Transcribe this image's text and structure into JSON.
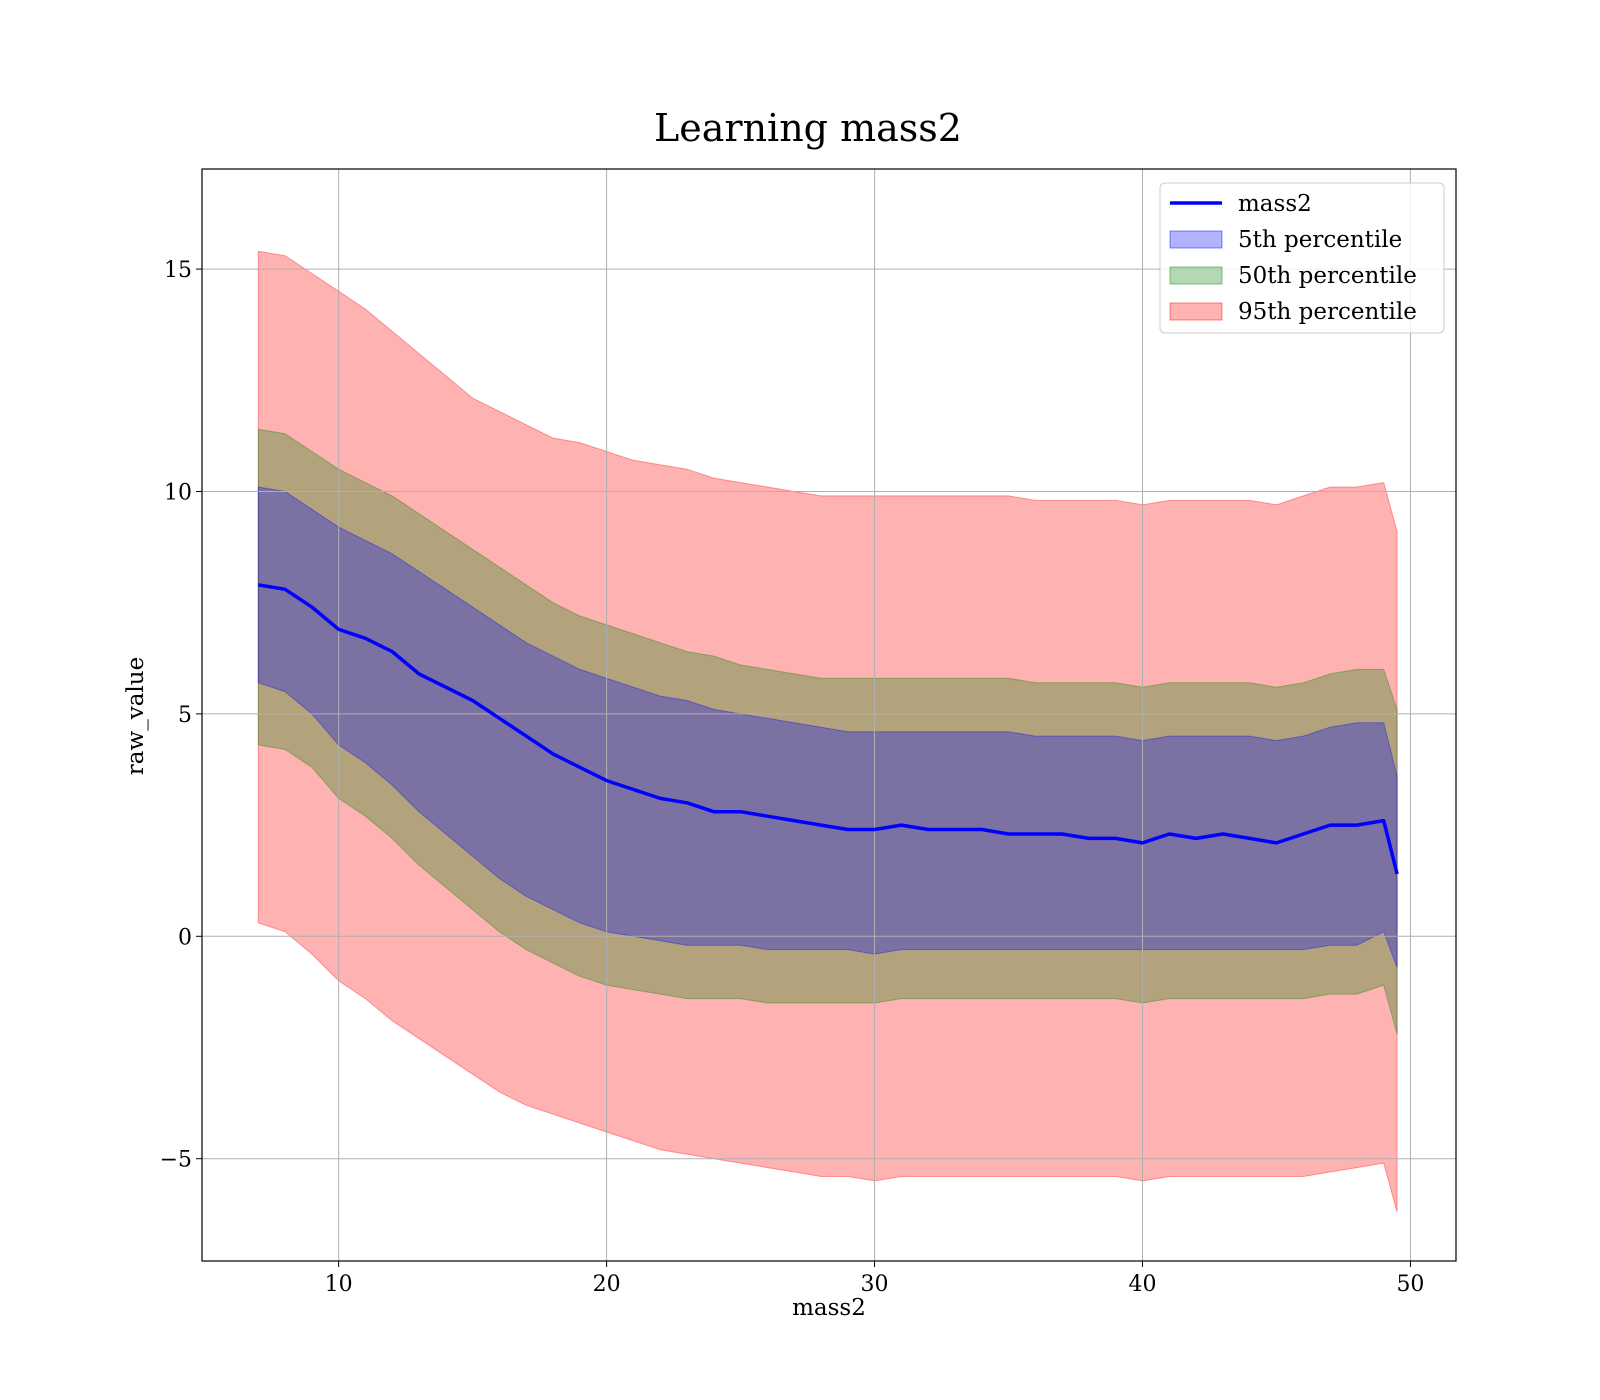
{
  "chart_data": {
    "type": "area",
    "title": "Learning mass2",
    "xlabel": "mass2",
    "ylabel": "raw_value",
    "xlim": [
      4.9,
      51.7
    ],
    "ylim": [
      -7.3,
      17.25
    ],
    "x_ticks": [
      10,
      20,
      30,
      40,
      50
    ],
    "x_tick_labels": [
      "10",
      "20",
      "30",
      "40",
      "50"
    ],
    "y_ticks": [
      -5,
      0,
      5,
      10,
      15
    ],
    "y_tick_labels": [
      "−5",
      "0",
      "5",
      "10",
      "15"
    ],
    "grid": true,
    "legend_position": "upper right",
    "x": [
      7.0,
      8.0,
      9.0,
      10.0,
      11.0,
      12.0,
      13.0,
      14.0,
      15.0,
      16.0,
      17.0,
      18.0,
      19.0,
      20.0,
      21.0,
      22.0,
      23.0,
      24.0,
      25.0,
      26.0,
      27.0,
      28.0,
      29.0,
      30.0,
      31.0,
      32.0,
      33.0,
      34.0,
      35.0,
      36.0,
      37.0,
      38.0,
      39.0,
      40.0,
      41.0,
      42.0,
      43.0,
      44.0,
      45.0,
      46.0,
      47.0,
      48.0,
      49.0,
      49.5
    ],
    "series": [
      {
        "name": "mass2",
        "kind": "line",
        "color": "#0000ff",
        "values": [
          7.9,
          7.8,
          7.4,
          6.9,
          6.7,
          6.4,
          5.9,
          5.6,
          5.3,
          4.9,
          4.5,
          4.1,
          3.8,
          3.5,
          3.3,
          3.1,
          3.0,
          2.8,
          2.8,
          2.7,
          2.6,
          2.5,
          2.4,
          2.4,
          2.5,
          2.4,
          2.4,
          2.4,
          2.3,
          2.3,
          2.3,
          2.2,
          2.2,
          2.1,
          2.3,
          2.2,
          2.3,
          2.2,
          2.1,
          2.3,
          2.5,
          2.5,
          2.6,
          1.4
        ]
      },
      {
        "name": "5th percentile",
        "kind": "band",
        "color": "#0000ff",
        "opacity": 0.3,
        "lower": [
          5.7,
          5.5,
          5.0,
          4.3,
          3.9,
          3.4,
          2.8,
          2.3,
          1.8,
          1.3,
          0.9,
          0.6,
          0.3,
          0.1,
          0.0,
          -0.1,
          -0.2,
          -0.2,
          -0.2,
          -0.3,
          -0.3,
          -0.3,
          -0.3,
          -0.4,
          -0.3,
          -0.3,
          -0.3,
          -0.3,
          -0.3,
          -0.3,
          -0.3,
          -0.3,
          -0.3,
          -0.3,
          -0.3,
          -0.3,
          -0.3,
          -0.3,
          -0.3,
          -0.3,
          -0.2,
          -0.2,
          0.1,
          -0.7
        ],
        "upper": [
          10.1,
          10.0,
          9.6,
          9.2,
          8.9,
          8.6,
          8.2,
          7.8,
          7.4,
          7.0,
          6.6,
          6.3,
          6.0,
          5.8,
          5.6,
          5.4,
          5.3,
          5.1,
          5.0,
          4.9,
          4.8,
          4.7,
          4.6,
          4.6,
          4.6,
          4.6,
          4.6,
          4.6,
          4.6,
          4.5,
          4.5,
          4.5,
          4.5,
          4.4,
          4.5,
          4.5,
          4.5,
          4.5,
          4.4,
          4.5,
          4.7,
          4.8,
          4.8,
          3.6
        ]
      },
      {
        "name": "50th percentile",
        "kind": "band",
        "color": "#008000",
        "opacity": 0.3,
        "lower": [
          4.3,
          4.2,
          3.8,
          3.1,
          2.7,
          2.2,
          1.6,
          1.1,
          0.6,
          0.1,
          -0.3,
          -0.6,
          -0.9,
          -1.1,
          -1.2,
          -1.3,
          -1.4,
          -1.4,
          -1.4,
          -1.5,
          -1.5,
          -1.5,
          -1.5,
          -1.5,
          -1.4,
          -1.4,
          -1.4,
          -1.4,
          -1.4,
          -1.4,
          -1.4,
          -1.4,
          -1.4,
          -1.5,
          -1.4,
          -1.4,
          -1.4,
          -1.4,
          -1.4,
          -1.4,
          -1.3,
          -1.3,
          -1.1,
          -2.2
        ],
        "upper": [
          11.4,
          11.3,
          10.9,
          10.5,
          10.2,
          9.9,
          9.5,
          9.1,
          8.7,
          8.3,
          7.9,
          7.5,
          7.2,
          7.0,
          6.8,
          6.6,
          6.4,
          6.3,
          6.1,
          6.0,
          5.9,
          5.8,
          5.8,
          5.8,
          5.8,
          5.8,
          5.8,
          5.8,
          5.8,
          5.7,
          5.7,
          5.7,
          5.7,
          5.6,
          5.7,
          5.7,
          5.7,
          5.7,
          5.6,
          5.7,
          5.9,
          6.0,
          6.0,
          5.1
        ]
      },
      {
        "name": "95th percentile",
        "kind": "band",
        "color": "#ff0000",
        "opacity": 0.3,
        "lower": [
          0.3,
          0.1,
          -0.4,
          -1.0,
          -1.4,
          -1.9,
          -2.3,
          -2.7,
          -3.1,
          -3.5,
          -3.8,
          -4.0,
          -4.2,
          -4.4,
          -4.6,
          -4.8,
          -4.9,
          -5.0,
          -5.1,
          -5.2,
          -5.3,
          -5.4,
          -5.4,
          -5.5,
          -5.4,
          -5.4,
          -5.4,
          -5.4,
          -5.4,
          -5.4,
          -5.4,
          -5.4,
          -5.4,
          -5.5,
          -5.4,
          -5.4,
          -5.4,
          -5.4,
          -5.4,
          -5.4,
          -5.3,
          -5.2,
          -5.1,
          -6.2
        ],
        "upper": [
          15.4,
          15.3,
          14.9,
          14.5,
          14.1,
          13.6,
          13.1,
          12.6,
          12.1,
          11.8,
          11.5,
          11.2,
          11.1,
          10.9,
          10.7,
          10.6,
          10.5,
          10.3,
          10.2,
          10.1,
          10.0,
          9.9,
          9.9,
          9.9,
          9.9,
          9.9,
          9.9,
          9.9,
          9.9,
          9.8,
          9.8,
          9.8,
          9.8,
          9.7,
          9.8,
          9.8,
          9.8,
          9.8,
          9.7,
          9.9,
          10.1,
          10.1,
          10.2,
          9.1
        ]
      }
    ]
  }
}
